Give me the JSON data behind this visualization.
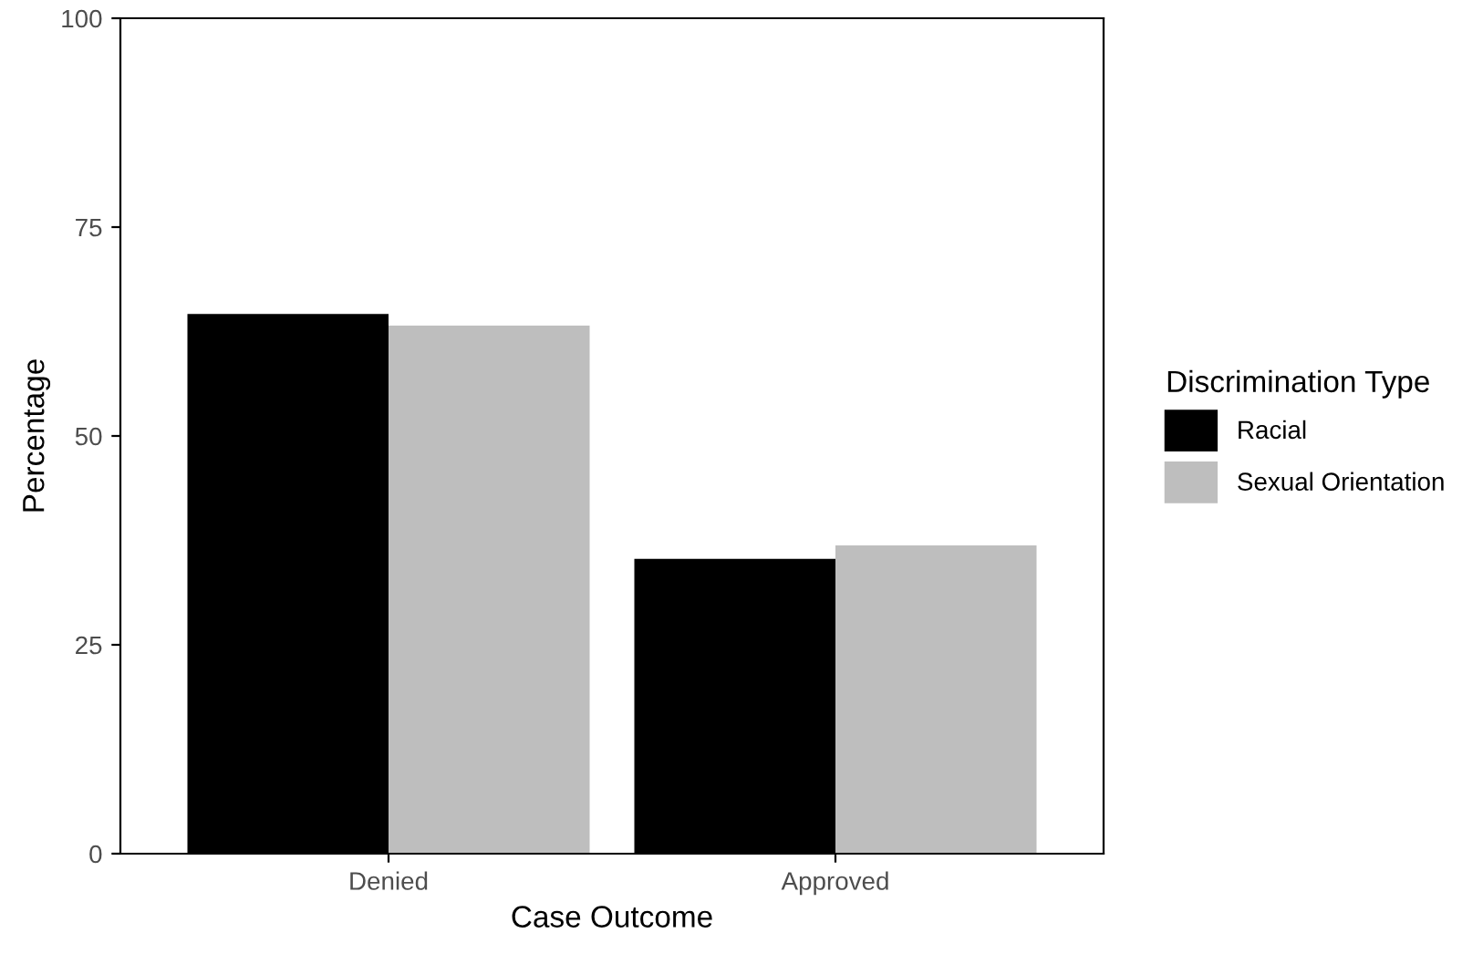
{
  "chart_data": {
    "type": "bar",
    "xlabel": "Case Outcome",
    "ylabel": "Percentage",
    "legend_title": "Discrimination Type",
    "categories": [
      "Denied",
      "Approved"
    ],
    "series": [
      {
        "name": "Racial",
        "color": "#000000",
        "values": [
          64.6,
          35.3
        ]
      },
      {
        "name": "Sexual Orientation",
        "color": "#bebebe",
        "values": [
          63.2,
          36.9
        ]
      }
    ],
    "ylim": [
      0,
      100
    ],
    "yticks": [
      0,
      25,
      50,
      75,
      100
    ],
    "grid": false,
    "legend": "right"
  }
}
